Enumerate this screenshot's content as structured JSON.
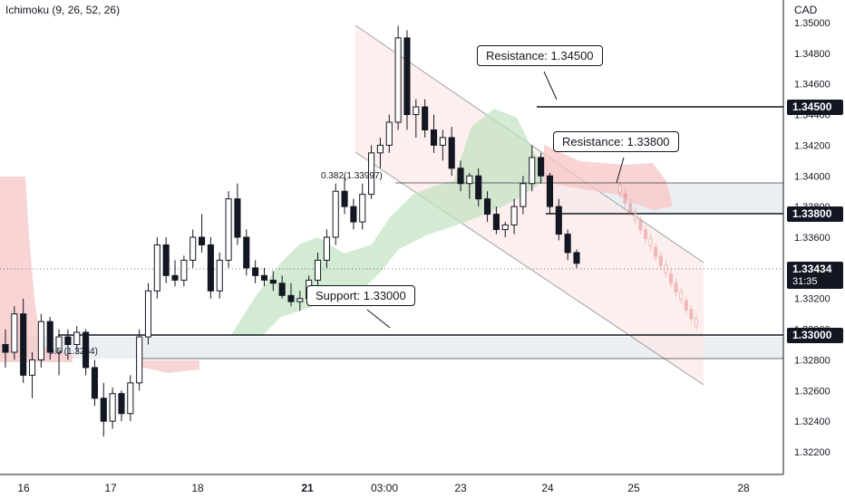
{
  "indicator": {
    "name": "Ichimoku",
    "params": "(9, 26, 52, 26)"
  },
  "currency": "CAD",
  "levels": {
    "resistance_1": {
      "label": "Resistance: 1.34500",
      "value": 1.345,
      "tag": "1.34500"
    },
    "resistance_2": {
      "label": "Resistance: 1.33800",
      "value": 1.338,
      "tag": "1.33800"
    },
    "support": {
      "label": "Support: 1.33000",
      "value": 1.33,
      "tag": "1.33000"
    },
    "current": {
      "value": 1.33434,
      "tag": "1.33434",
      "countdown": "31:35"
    }
  },
  "fib": {
    "upper": {
      "label": "0.382(1.33997)",
      "value": 1.33997
    },
    "lower": {
      "label": "0.5 (1.3284)",
      "value": 1.3284
    }
  },
  "colors": {
    "bull": "#ffffff",
    "bear": "#131722",
    "cloud_green": "#bfe3bf",
    "cloud_red": "#f7c5c5",
    "channel_fill": "#fde8e8",
    "zone_fill": "#e8ebf0",
    "grid_line": "#131722"
  },
  "chart_data": {
    "type": "candlestick",
    "y_axis": {
      "min": 1.321,
      "max": 1.351,
      "ticks": [
        "1.32200",
        "1.32400",
        "1.32600",
        "1.32800",
        "1.33000",
        "1.33200",
        "1.33400",
        "1.33600",
        "1.33800",
        "1.34000",
        "1.34200",
        "1.34400",
        "1.34600",
        "1.34800",
        "1.35000"
      ]
    },
    "x_axis": {
      "ticks": [
        "16",
        "17",
        "18",
        "21",
        "03:00",
        "23",
        "24",
        "25",
        "28"
      ]
    },
    "candles": [
      [
        1.329,
        1.33,
        1.3275,
        1.3285
      ],
      [
        1.3285,
        1.3315,
        1.328,
        1.331
      ],
      [
        1.331,
        1.332,
        1.3265,
        1.327
      ],
      [
        1.327,
        1.3285,
        1.3255,
        1.328
      ],
      [
        1.328,
        1.331,
        1.3275,
        1.3305
      ],
      [
        1.3305,
        1.3308,
        1.328,
        1.3285
      ],
      [
        1.3285,
        1.33,
        1.327,
        1.3295
      ],
      [
        1.3295,
        1.33,
        1.328,
        1.329
      ],
      [
        1.329,
        1.3302,
        1.3285,
        1.3298
      ],
      [
        1.3298,
        1.33,
        1.327,
        1.3275
      ],
      [
        1.3275,
        1.328,
        1.325,
        1.3255
      ],
      [
        1.3255,
        1.3265,
        1.323,
        1.324
      ],
      [
        1.324,
        1.3262,
        1.3235,
        1.3258
      ],
      [
        1.3258,
        1.326,
        1.324,
        1.3245
      ],
      [
        1.3245,
        1.327,
        1.324,
        1.3265
      ],
      [
        1.3265,
        1.33,
        1.326,
        1.3295
      ],
      [
        1.3295,
        1.333,
        1.329,
        1.3325
      ],
      [
        1.3325,
        1.336,
        1.332,
        1.3355
      ],
      [
        1.3355,
        1.336,
        1.333,
        1.3335
      ],
      [
        1.3335,
        1.3345,
        1.3328,
        1.3332
      ],
      [
        1.3332,
        1.3348,
        1.3328,
        1.3345
      ],
      [
        1.3345,
        1.3365,
        1.334,
        1.336
      ],
      [
        1.336,
        1.3375,
        1.335,
        1.3355
      ],
      [
        1.3355,
        1.336,
        1.332,
        1.3325
      ],
      [
        1.3325,
        1.335,
        1.332,
        1.3345
      ],
      [
        1.3345,
        1.339,
        1.334,
        1.3385
      ],
      [
        1.3385,
        1.3395,
        1.3355,
        1.336
      ],
      [
        1.336,
        1.3365,
        1.3335,
        1.334
      ],
      [
        1.334,
        1.3345,
        1.333,
        1.3335
      ],
      [
        1.3335,
        1.334,
        1.3328,
        1.3332
      ],
      [
        1.3332,
        1.3338,
        1.3325,
        1.333
      ],
      [
        1.333,
        1.3335,
        1.332,
        1.3322
      ],
      [
        1.3322,
        1.333,
        1.3315,
        1.3318
      ],
      [
        1.3318,
        1.3325,
        1.3312,
        1.332
      ],
      [
        1.332,
        1.3335,
        1.3315,
        1.3332
      ],
      [
        1.3332,
        1.335,
        1.3328,
        1.3345
      ],
      [
        1.3345,
        1.3365,
        1.334,
        1.336
      ],
      [
        1.336,
        1.3395,
        1.3355,
        1.339
      ],
      [
        1.339,
        1.34,
        1.3375,
        1.338
      ],
      [
        1.338,
        1.3385,
        1.3365,
        1.337
      ],
      [
        1.337,
        1.3395,
        1.3365,
        1.3388
      ],
      [
        1.3388,
        1.342,
        1.3385,
        1.3415
      ],
      [
        1.3415,
        1.3425,
        1.3405,
        1.342
      ],
      [
        1.342,
        1.344,
        1.3415,
        1.3435
      ],
      [
        1.3435,
        1.3498,
        1.343,
        1.349
      ],
      [
        1.349,
        1.3495,
        1.343,
        1.344
      ],
      [
        1.344,
        1.345,
        1.3425,
        1.3445
      ],
      [
        1.3445,
        1.345,
        1.3425,
        1.343
      ],
      [
        1.343,
        1.344,
        1.3415,
        1.342
      ],
      [
        1.342,
        1.343,
        1.341,
        1.3425
      ],
      [
        1.3425,
        1.3432,
        1.34,
        1.3405
      ],
      [
        1.3405,
        1.341,
        1.339,
        1.3395
      ],
      [
        1.3395,
        1.3402,
        1.3385,
        1.34
      ],
      [
        1.34,
        1.3405,
        1.338,
        1.3385
      ],
      [
        1.3385,
        1.339,
        1.337,
        1.3375
      ],
      [
        1.3375,
        1.338,
        1.3362,
        1.3365
      ],
      [
        1.3365,
        1.337,
        1.336,
        1.3368
      ],
      [
        1.3368,
        1.3385,
        1.3362,
        1.338
      ],
      [
        1.338,
        1.34,
        1.3375,
        1.3395
      ],
      [
        1.3395,
        1.342,
        1.339,
        1.3412
      ],
      [
        1.3412,
        1.3415,
        1.3395,
        1.34
      ],
      [
        1.34,
        1.3402,
        1.3375,
        1.338
      ],
      [
        1.338,
        1.3385,
        1.3358,
        1.3362
      ],
      [
        1.3362,
        1.3365,
        1.3345,
        1.335
      ],
      [
        1.335,
        1.3352,
        1.334,
        1.3343
      ]
    ]
  }
}
